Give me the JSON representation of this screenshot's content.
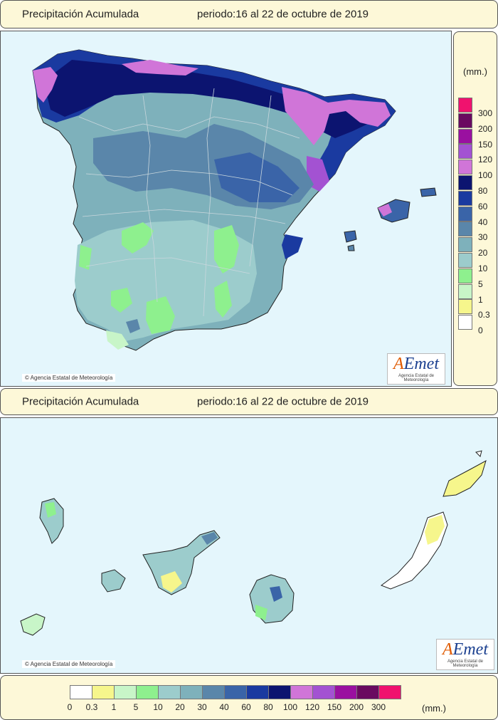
{
  "header_top": {
    "title": "Precipitación Acumulada",
    "period": "periodo:16 al 22 de octubre de 2019"
  },
  "header_mid": {
    "title": "Precipitación Acumulada",
    "period": "periodo:16 al 22 de octubre de 2019"
  },
  "credit_top": "© Agencia Estatal de Meteorología",
  "credit_bottom": "© Agencia Estatal de Meteorología",
  "logo": {
    "mark": "AEmet",
    "subtitle": "Agencia Estatal de Meteorología"
  },
  "legend": {
    "unit": "(mm.)",
    "thresholds": [
      "0",
      "0.3",
      "1",
      "5",
      "10",
      "20",
      "30",
      "40",
      "60",
      "80",
      "100",
      "120",
      "150",
      "200",
      "300"
    ],
    "colors": [
      "#ffffff",
      "#f6f68c",
      "#c8f5c8",
      "#8ef08e",
      "#9ccccc",
      "#7eb1bb",
      "#5a86aa",
      "#3a64a8",
      "#1a3aa0",
      "#0c1470",
      "#d075d8",
      "#a352d2",
      "#9a10a0",
      "#6a0a60",
      "#f0126e"
    ]
  },
  "colors": {
    "sea": "#e4f6fc",
    "panel": "#fdf8d8"
  }
}
